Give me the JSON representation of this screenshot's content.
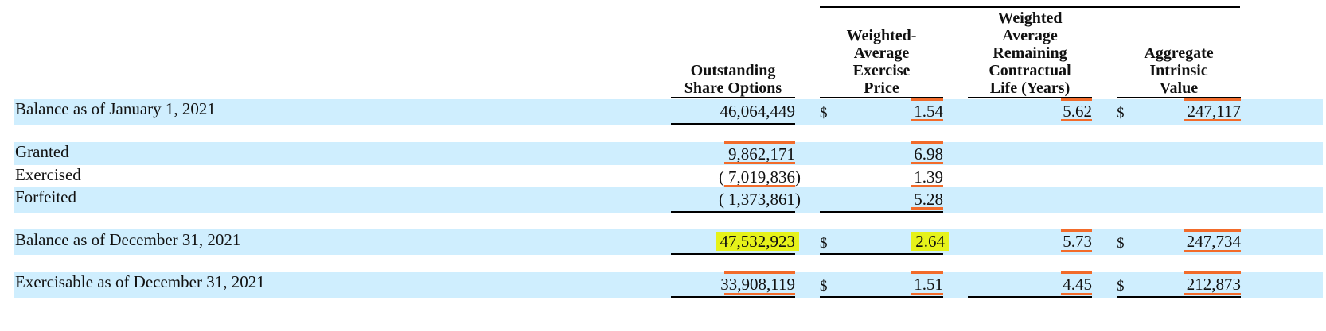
{
  "headers": {
    "col1": [
      "Outstanding",
      "Share Options"
    ],
    "col2": [
      "Weighted-",
      "Average",
      "Exercise",
      "Price"
    ],
    "col3": [
      "Weighted",
      "Average",
      "Remaining",
      "Contractual",
      "Life (Years)"
    ],
    "col4": [
      "Aggregate",
      "Intrinsic",
      "Value"
    ]
  },
  "currency_symbol": "$",
  "rows": [
    {
      "label": "Balance as of January 1, 2021",
      "options": "46,064,449",
      "price": "1.54",
      "life": "5.62",
      "value": "247,117"
    },
    {
      "label": "Granted",
      "options": "9,862,171",
      "price": "6.98"
    },
    {
      "label": "Exercised",
      "options": "7,019,836",
      "price": "1.39"
    },
    {
      "label": "Forfeited",
      "options": "1,373,861",
      "price": "5.28"
    },
    {
      "label": "Balance as of December 31, 2021",
      "options": "47,532,923",
      "price": "2.64",
      "life": "5.73",
      "value": "247,734"
    },
    {
      "label": "Exercisable as of December 31, 2021",
      "options": "33,908,119",
      "price": "1.51",
      "life": "4.45",
      "value": "212,873"
    }
  ],
  "paren_open": "(",
  "paren_close": ")",
  "highlight_color": "#e6f21a",
  "band_color": "#cfeefe",
  "underline_color": "#f26b2a"
}
